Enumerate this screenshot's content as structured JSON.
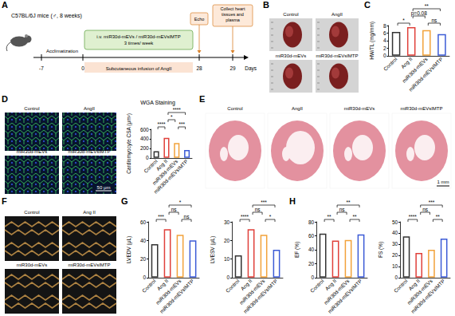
{
  "panel_letters": [
    "A",
    "B",
    "C",
    "D",
    "E",
    "F",
    "G",
    "H"
  ],
  "timeline": {
    "title": "C57BL/6J mice (♂, 8 weeks)",
    "acclimatization": "Acclimatization",
    "treatment": "i.v. miR30d-mEVs / miR30d-mEVsIMTP 3 times/ week",
    "infusion": "Subcutaneous infusion of AngII",
    "events": [
      "Echo",
      "Collect heart tissues and plasma"
    ],
    "days": [
      -7,
      0,
      28,
      29
    ],
    "unit": "Days"
  },
  "heart_photos": {
    "labels": [
      "Control",
      "AngII",
      "miR30d-mEVs",
      "miR30d-mEVsIMTP"
    ]
  },
  "wga_images": {
    "labels": [
      "Control",
      "AngII",
      "miR30d-mEVs",
      "miR30d-mEVsIMTP"
    ],
    "scale_bar": "50 μm"
  },
  "histology_images": {
    "labels": [
      "Control",
      "AngII",
      "miR30d-mEVs",
      "miR30d-mEVsIMTP"
    ],
    "scale_bar": "1 mm"
  },
  "echo_images": {
    "labels": [
      "Control",
      "Ang II",
      "miR30d-mEVs",
      "miR30d-mEVsIMTP"
    ]
  },
  "chart_data": [
    {
      "type": "bar",
      "y_label": "HW/TL (mg/mm)",
      "categories": [
        "Control",
        "Ang II",
        "miR30d-mEVs",
        "miR30d-mEVsIMTP"
      ],
      "values": [
        6.3,
        7.6,
        6.8,
        5.7
      ],
      "colors": [
        "#333333",
        "#e0403a",
        "#f2a23a",
        "#3c5bd6"
      ],
      "ylim": [
        0,
        8
      ],
      "yticks": [
        0,
        2,
        4,
        6,
        8
      ],
      "grid": false,
      "annotations": [
        {
          "between": [
            "Control",
            "Ang II"
          ],
          "text": "*"
        },
        {
          "between": [
            "Ang II",
            "miR30d-mEVs"
          ],
          "text": "p=0.08"
        },
        {
          "between": [
            "Ang II",
            "miR30d-mEVsIMTP"
          ],
          "text": "**"
        },
        {
          "between": [
            "miR30d-mEVs",
            "miR30d-mEVsIMTP"
          ],
          "text": "ns"
        }
      ]
    },
    {
      "type": "bar",
      "title": "WGA Staining",
      "y_label": "Cardiomyocyte CSA (μm²)",
      "categories": [
        "Control",
        "Ang II",
        "miR30d-mEVs",
        "miR30d-mEVsIMTP"
      ],
      "values": [
        140,
        420,
        310,
        165
      ],
      "colors": [
        "#333333",
        "#e0403a",
        "#f2a23a",
        "#3c5bd6"
      ],
      "ylim": [
        0,
        600
      ],
      "yticks": [
        0,
        200,
        400,
        600
      ],
      "grid": false,
      "annotations": [
        {
          "between": [
            "Control",
            "Ang II"
          ],
          "text": "****"
        },
        {
          "between": [
            "Ang II",
            "miR30d-mEVs"
          ],
          "text": "*"
        },
        {
          "between": [
            "Ang II",
            "miR30d-mEVsIMTP"
          ],
          "text": "****"
        },
        {
          "between": [
            "miR30d-mEVs",
            "miR30d-mEVsIMTP"
          ],
          "text": "***"
        }
      ]
    },
    {
      "type": "bar",
      "y_label": "LVEDV (μL)",
      "categories": [
        "Control",
        "Ang II",
        "miR30d-mEVs",
        "miR30d-mEVsIMTP"
      ],
      "values": [
        36,
        52,
        46,
        40
      ],
      "colors": [
        "#333333",
        "#e0403a",
        "#f2a23a",
        "#3c5bd6"
      ],
      "ylim": [
        0,
        60
      ],
      "yticks": [
        0,
        20,
        40,
        60
      ],
      "grid": false,
      "annotations": [
        {
          "between": [
            "Control",
            "Ang II"
          ],
          "text": "***"
        },
        {
          "between": [
            "Ang II",
            "miR30d-mEVs"
          ],
          "text": "ns"
        },
        {
          "between": [
            "Ang II",
            "miR30d-mEVsIMTP"
          ],
          "text": "*"
        },
        {
          "between": [
            "miR30d-mEVs",
            "miR30d-mEVsIMTP"
          ],
          "text": "ns"
        }
      ]
    },
    {
      "type": "bar",
      "y_label": "LVESV (μL)",
      "categories": [
        "Control",
        "Ang II",
        "miR30d-mEVs",
        "miR30d-mEVsIMTP"
      ],
      "values": [
        12,
        26,
        23,
        15
      ],
      "colors": [
        "#333333",
        "#e0403a",
        "#f2a23a",
        "#3c5bd6"
      ],
      "ylim": [
        0,
        30
      ],
      "yticks": [
        0,
        10,
        20,
        30
      ],
      "grid": false,
      "annotations": [
        {
          "between": [
            "Control",
            "Ang II"
          ],
          "text": "****"
        },
        {
          "between": [
            "Ang II",
            "miR30d-mEVs"
          ],
          "text": "ns"
        },
        {
          "between": [
            "Ang II",
            "miR30d-mEVsIMTP"
          ],
          "text": "***"
        },
        {
          "between": [
            "miR30d-mEVs",
            "miR30d-mEVsIMTP"
          ],
          "text": "*"
        }
      ]
    },
    {
      "type": "bar",
      "y_label": "EF (%)",
      "categories": [
        "Control",
        "Ang II",
        "miR30d-mEVs",
        "miR30d-mEVsIMTP"
      ],
      "values": [
        63,
        53,
        54,
        62
      ],
      "colors": [
        "#333333",
        "#e0403a",
        "#f2a23a",
        "#3c5bd6"
      ],
      "ylim": [
        0,
        80
      ],
      "yticks": [
        0,
        20,
        40,
        60,
        80
      ],
      "grid": false,
      "annotations": [
        {
          "between": [
            "Control",
            "Ang II"
          ],
          "text": "**"
        },
        {
          "between": [
            "Ang II",
            "miR30d-mEVs"
          ],
          "text": "ns"
        },
        {
          "between": [
            "Ang II",
            "miR30d-mEVsIMTP"
          ],
          "text": "**"
        },
        {
          "between": [
            "miR30d-mEVs",
            "miR30d-mEVsIMTP"
          ],
          "text": "**"
        }
      ]
    },
    {
      "type": "bar",
      "y_label": "FS (%)",
      "categories": [
        "Control",
        "Ang II",
        "miR30d-mEVs",
        "miR30d-mEVsIMTP"
      ],
      "values": [
        37,
        22,
        25,
        35
      ],
      "colors": [
        "#333333",
        "#e0403a",
        "#f2a23a",
        "#3c5bd6"
      ],
      "ylim": [
        0,
        50
      ],
      "yticks": [
        0,
        10,
        20,
        30,
        40,
        50
      ],
      "grid": false,
      "annotations": [
        {
          "between": [
            "Control",
            "Ang II"
          ],
          "text": "****"
        },
        {
          "between": [
            "Ang II",
            "miR30d-mEVs"
          ],
          "text": "ns"
        },
        {
          "between": [
            "Ang II",
            "miR30d-mEVsIMTP"
          ],
          "text": "***"
        },
        {
          "between": [
            "miR30d-mEVs",
            "miR30d-mEVsIMTP"
          ],
          "text": "**"
        }
      ]
    }
  ]
}
